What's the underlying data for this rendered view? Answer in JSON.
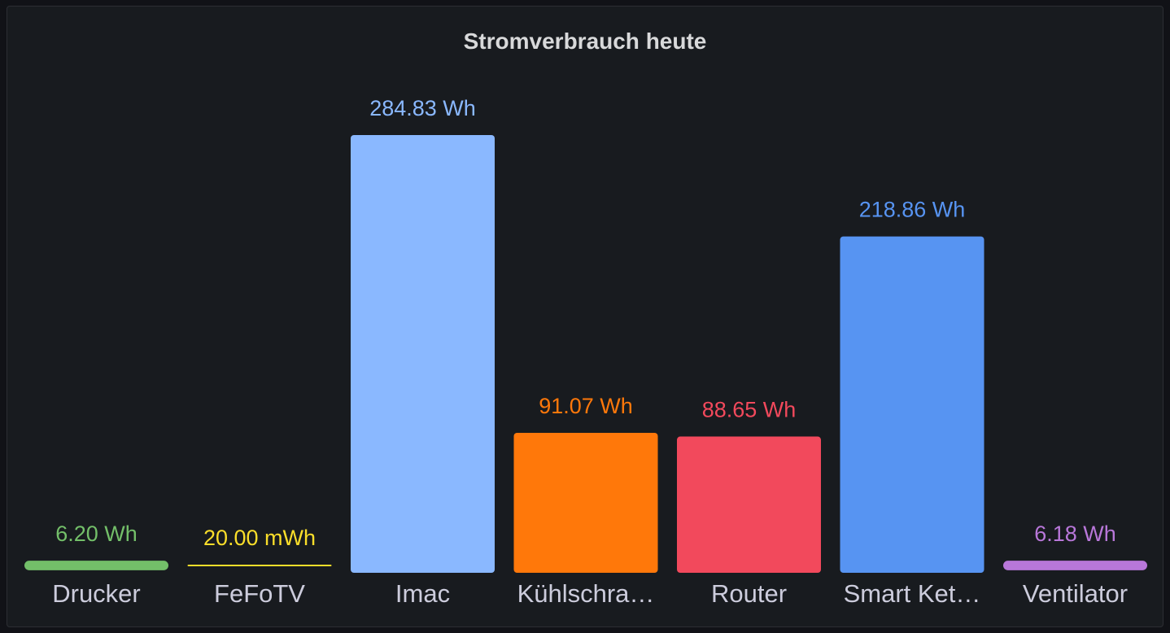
{
  "panel": {
    "title": "Stromverbrauch heute"
  },
  "chart_data": {
    "type": "bar",
    "title": "Stromverbrauch heute",
    "unit": "Wh",
    "categories": [
      "Drucker",
      "FeFoTV",
      "Imac",
      "Kühlschra…",
      "Router",
      "Smart Ket…",
      "Ventilator"
    ],
    "values": [
      6.2,
      0.02,
      284.83,
      91.07,
      88.65,
      218.86,
      6.18
    ],
    "value_labels": [
      "6.20 Wh",
      "20.00 mWh",
      "284.83 Wh",
      "91.07 Wh",
      "88.65 Wh",
      "218.86 Wh",
      "6.18 Wh"
    ],
    "colors": [
      "#73bf69",
      "#fade2a",
      "#8ab8ff",
      "#ff780a",
      "#f2495c",
      "#5794f2",
      "#b877d9"
    ],
    "ylim": [
      0,
      284.83
    ],
    "grid": false,
    "legend": "none"
  }
}
